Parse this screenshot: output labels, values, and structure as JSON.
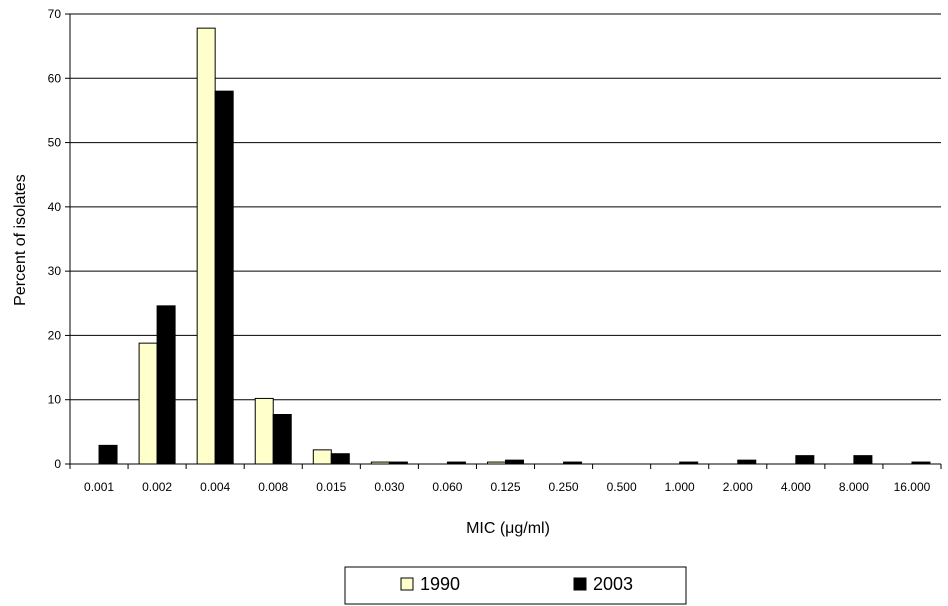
{
  "chart_data": {
    "type": "bar",
    "title": "",
    "xlabel": "MIC (μg/ml)",
    "ylabel": "Percent of isolates",
    "categories": [
      "0.001",
      "0.002",
      "0.004",
      "0.008",
      "0.015",
      "0.030",
      "0.060",
      "0.125",
      "0.250",
      "0.500",
      "1.000",
      "2.000",
      "4.000",
      "8.000",
      "16.000"
    ],
    "series": [
      {
        "name": "1990",
        "color": "#ffffcc",
        "values": [
          0,
          18.8,
          67.8,
          10.2,
          2.2,
          0.3,
          0,
          0.3,
          0,
          0,
          0,
          0,
          0,
          0,
          0
        ]
      },
      {
        "name": "2003",
        "color": "#000000",
        "values": [
          2.9,
          24.6,
          58.0,
          7.7,
          1.6,
          0.3,
          0.3,
          0.6,
          0.3,
          0,
          0.3,
          0.6,
          1.3,
          1.3,
          0.3
        ]
      }
    ],
    "ylim": [
      0,
      70
    ],
    "yticks": [
      0,
      10,
      20,
      30,
      40,
      50,
      60,
      70
    ],
    "grid": true,
    "legend_position": "bottom"
  }
}
